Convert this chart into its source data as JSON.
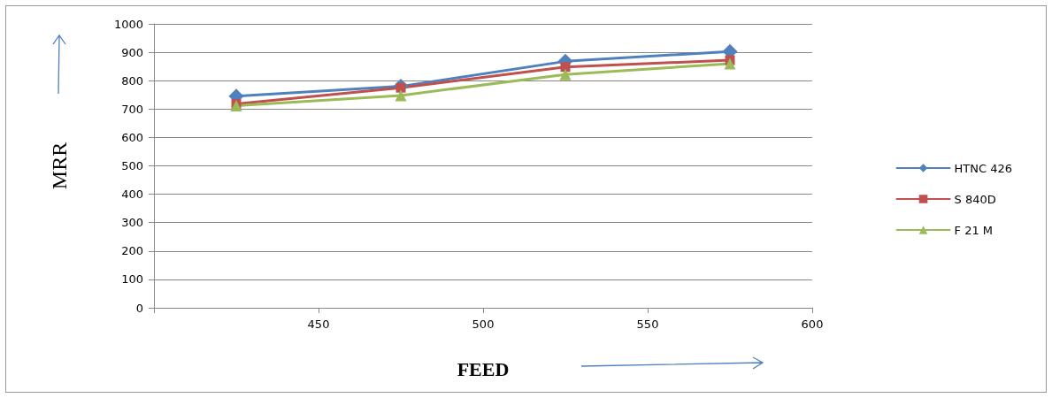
{
  "chart_data": {
    "type": "line",
    "xlabel": "FEED",
    "ylabel": "MRR",
    "x": [
      425,
      475,
      525,
      575
    ],
    "series": [
      {
        "name": "HTNC 426",
        "color": "#4f81bd",
        "marker": "diamond",
        "values": [
          745,
          780,
          868,
          903
        ]
      },
      {
        "name": "S 840D",
        "color": "#c0504d",
        "marker": "square",
        "values": [
          718,
          775,
          848,
          872
        ]
      },
      {
        "name": "F 21 M",
        "color": "#9bbb59",
        "marker": "triangle",
        "values": [
          712,
          748,
          822,
          860
        ]
      }
    ],
    "xlim": [
      400,
      600
    ],
    "xticks": [
      {
        "value": 400,
        "label": null
      },
      450,
      500,
      550,
      600
    ],
    "ylim": [
      0,
      1000
    ],
    "yticks": [
      0,
      100,
      200,
      300,
      400,
      500,
      600,
      700,
      800,
      900,
      1000
    ],
    "grid": "y",
    "legend": "right",
    "line_style": "solid"
  }
}
